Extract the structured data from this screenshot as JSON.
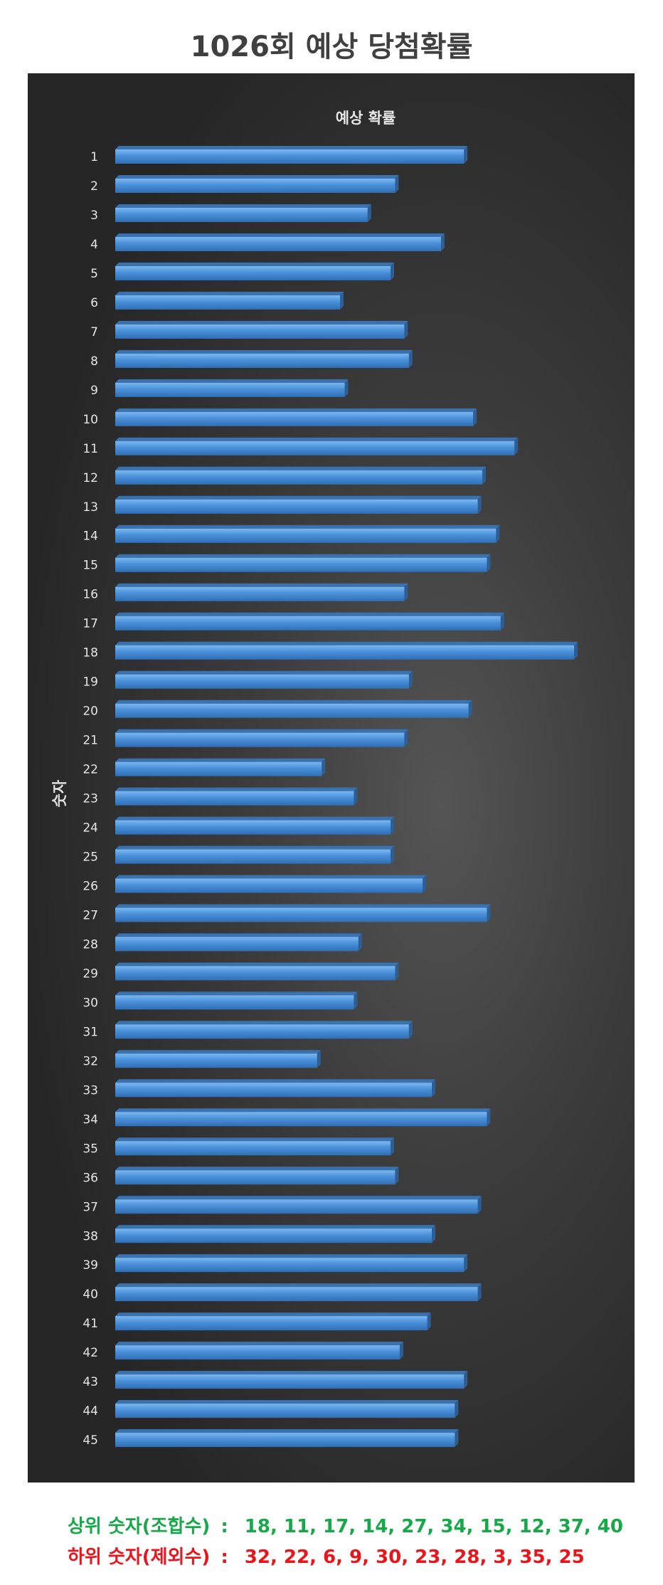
{
  "page_title": "1026회 예상 당첨확률",
  "chart_data": {
    "type": "bar",
    "orientation": "horizontal",
    "title": "예상 확률",
    "xlabel": "",
    "ylabel": "숫자",
    "categories": [
      "1",
      "2",
      "3",
      "4",
      "5",
      "6",
      "7",
      "8",
      "9",
      "10",
      "11",
      "12",
      "13",
      "14",
      "15",
      "16",
      "17",
      "18",
      "19",
      "20",
      "21",
      "22",
      "23",
      "24",
      "25",
      "26",
      "27",
      "28",
      "29",
      "30",
      "31",
      "32",
      "33",
      "34",
      "35",
      "36",
      "37",
      "38",
      "39",
      "40",
      "41",
      "42",
      "43",
      "44",
      "45"
    ],
    "values": [
      76,
      61,
      55,
      71,
      60,
      49,
      63,
      64,
      50,
      78,
      87,
      80,
      79,
      83,
      81,
      63,
      84,
      100,
      64,
      77,
      63,
      45,
      52,
      60,
      60,
      67,
      81,
      53,
      61,
      52,
      64,
      44,
      69,
      81,
      60,
      61,
      79,
      69,
      76,
      79,
      68,
      62,
      76,
      74,
      74
    ],
    "xlim": [
      0,
      100
    ],
    "grid": false,
    "legend": "none",
    "bar_color": "#4a90d9"
  },
  "summary": {
    "top": {
      "label": "상위 숫자(조합수)",
      "separator": ":",
      "numbers": "18, 11, 17, 14, 27, 34, 15, 12, 37, 40",
      "color": "#17a84a"
    },
    "bottom": {
      "label": "하위 숫자(제외수)",
      "separator": ":",
      "numbers": "32, 22, 6, 9, 30, 23, 28, 3, 35, 25",
      "color": "#e8151c"
    }
  }
}
